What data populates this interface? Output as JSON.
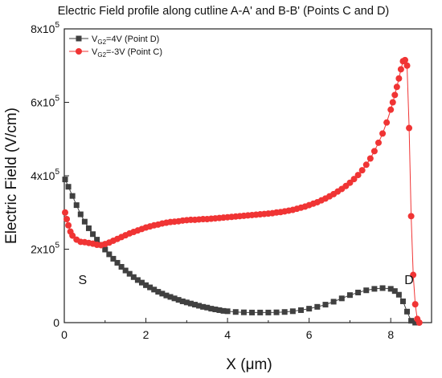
{
  "chart_data": {
    "type": "line",
    "title": "Electric Field profile along cutline A-A' and B-B' (Points C and D)",
    "xlabel": "X (μm)",
    "ylabel": "Electric Field (V/cm)",
    "xlim": [
      0,
      9
    ],
    "ylim": [
      0,
      800000
    ],
    "xticks": [
      {
        "value": 0,
        "label": "0"
      },
      {
        "value": 2,
        "label": "2"
      },
      {
        "value": 4,
        "label": "4"
      },
      {
        "value": 6,
        "label": "6"
      },
      {
        "value": 8,
        "label": "8"
      }
    ],
    "yticks": [
      {
        "value": 0,
        "mant": "0",
        "exp": ""
      },
      {
        "value": 200000,
        "mant": "2x10",
        "exp": "5"
      },
      {
        "value": 400000,
        "mant": "4x10",
        "exp": "5"
      },
      {
        "value": 600000,
        "mant": "6x10",
        "exp": "5"
      },
      {
        "value": 800000,
        "mant": "8x10",
        "exp": "5"
      }
    ],
    "grid": false,
    "legend_position": "top-left",
    "annotations": [
      {
        "text": "S",
        "x": 0.45,
        "y": 105000
      },
      {
        "text": "D",
        "x": 8.45,
        "y": 105000
      }
    ],
    "series": [
      {
        "name": "V_G2=4V (Point D)",
        "legend": {
          "pre": "V",
          "sub": "G2",
          "post": "=4V (Point D)"
        },
        "color": "#404040",
        "marker": "square",
        "x": [
          0.02,
          0.1,
          0.2,
          0.3,
          0.4,
          0.5,
          0.6,
          0.7,
          0.8,
          0.9,
          1.0,
          1.1,
          1.2,
          1.3,
          1.4,
          1.5,
          1.6,
          1.7,
          1.8,
          1.9,
          2.0,
          2.1,
          2.2,
          2.3,
          2.4,
          2.5,
          2.6,
          2.7,
          2.8,
          2.9,
          3.0,
          3.1,
          3.2,
          3.3,
          3.4,
          3.5,
          3.6,
          3.7,
          3.8,
          3.9,
          4.0,
          4.2,
          4.4,
          4.6,
          4.8,
          5.0,
          5.2,
          5.4,
          5.6,
          5.8,
          6.0,
          6.2,
          6.4,
          6.6,
          6.8,
          7.0,
          7.2,
          7.4,
          7.6,
          7.8,
          8.0,
          8.1,
          8.2,
          8.3,
          8.4,
          8.5,
          8.6
        ],
        "y": [
          390000,
          370000,
          345000,
          320000,
          295000,
          275000,
          257000,
          241000,
          226000,
          212000,
          199000,
          186000,
          174000,
          163000,
          152000,
          142000,
          133000,
          124000,
          116000,
          109000,
          102000,
          96000,
          90000,
          84000,
          79000,
          74000,
          70000,
          66000,
          62000,
          58000,
          55000,
          52000,
          49000,
          46000,
          43000,
          41000,
          38000,
          36000,
          34000,
          32000,
          31000,
          29000,
          28000,
          27500,
          27500,
          27500,
          28000,
          29000,
          31000,
          34000,
          38000,
          43000,
          49000,
          57000,
          66000,
          75000,
          82000,
          88000,
          92000,
          94000,
          92000,
          86000,
          76000,
          58000,
          30000,
          5000,
          0
        ]
      },
      {
        "name": "V_G2=-3V (Point C)",
        "legend": {
          "pre": "V",
          "sub": "G2",
          "post": "=-3V (Point C)"
        },
        "color": "#f03434",
        "marker": "circle",
        "x": [
          0.02,
          0.06,
          0.1,
          0.15,
          0.2,
          0.3,
          0.4,
          0.5,
          0.6,
          0.7,
          0.8,
          0.9,
          1.0,
          1.1,
          1.2,
          1.3,
          1.4,
          1.5,
          1.6,
          1.7,
          1.8,
          1.9,
          2.0,
          2.1,
          2.2,
          2.3,
          2.4,
          2.5,
          2.6,
          2.7,
          2.8,
          2.9,
          3.0,
          3.1,
          3.2,
          3.3,
          3.4,
          3.5,
          3.6,
          3.7,
          3.8,
          3.9,
          4.0,
          4.1,
          4.2,
          4.3,
          4.4,
          4.5,
          4.6,
          4.7,
          4.8,
          4.9,
          5.0,
          5.1,
          5.2,
          5.3,
          5.4,
          5.5,
          5.6,
          5.7,
          5.8,
          5.9,
          6.0,
          6.1,
          6.2,
          6.3,
          6.4,
          6.5,
          6.6,
          6.7,
          6.8,
          6.9,
          7.0,
          7.1,
          7.2,
          7.3,
          7.4,
          7.5,
          7.6,
          7.7,
          7.8,
          7.9,
          8.0,
          8.05,
          8.1,
          8.15,
          8.2,
          8.25,
          8.3,
          8.35,
          8.4,
          8.45,
          8.5,
          8.55,
          8.6,
          8.65,
          8.7
        ],
        "y": [
          300000,
          282000,
          265000,
          248000,
          237000,
          226000,
          220000,
          219000,
          217000,
          215000,
          212000,
          211000,
          214000,
          218000,
          223000,
          228000,
          233000,
          238000,
          243000,
          247000,
          251000,
          255000,
          259000,
          262000,
          265000,
          267000,
          270000,
          272000,
          274000,
          275000,
          276000,
          278000,
          279000,
          280000,
          280000,
          281000,
          282000,
          282000,
          283000,
          284000,
          285000,
          286000,
          287000,
          288000,
          289000,
          290000,
          291000,
          292000,
          293000,
          294000,
          295000,
          296000,
          297000,
          298000,
          300000,
          301000,
          303000,
          305000,
          307000,
          310000,
          313000,
          316000,
          320000,
          324000,
          328000,
          333000,
          338000,
          344000,
          350000,
          357000,
          364000,
          372000,
          381000,
          391000,
          402000,
          415000,
          430000,
          447000,
          467000,
          490000,
          515000,
          545000,
          580000,
          600000,
          620000,
          642000,
          665000,
          690000,
          712000,
          715000,
          700000,
          530000,
          290000,
          130000,
          50000,
          10000,
          0
        ]
      }
    ]
  }
}
